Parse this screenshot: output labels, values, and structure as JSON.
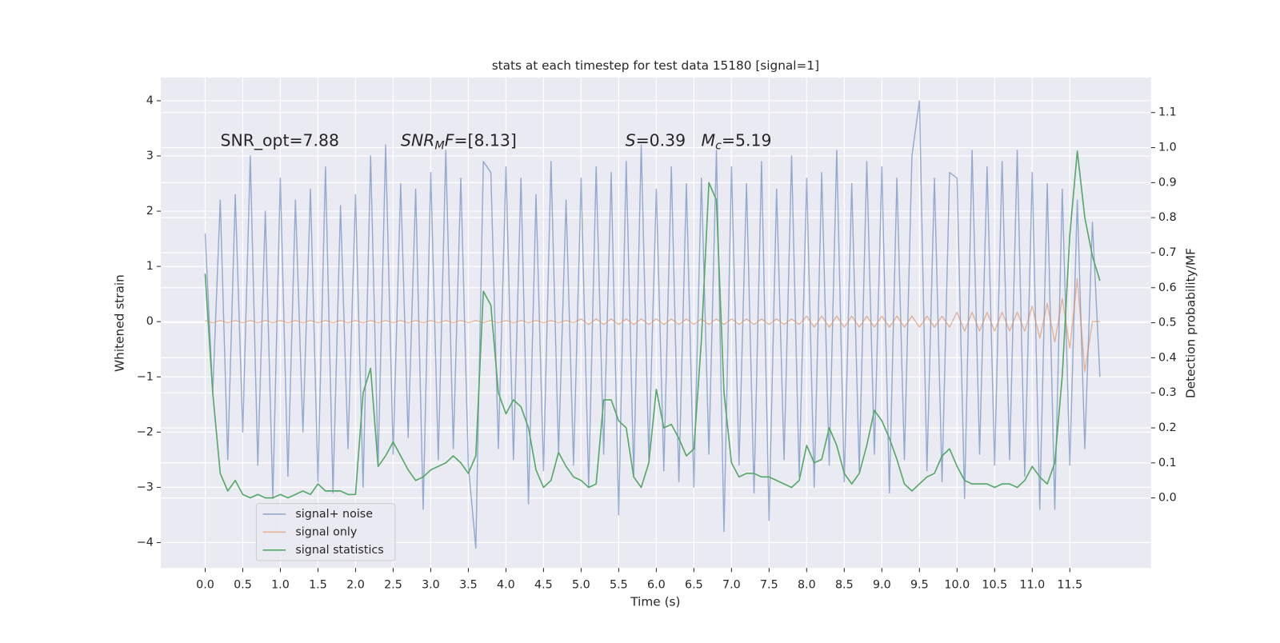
{
  "chart_data": {
    "type": "line",
    "title": "stats at each timestep for test data 15180 [signal=1]",
    "xlabel": "Time (s)",
    "ylabel": "Whitened strain",
    "y2label": "Detection probability/MF",
    "annotations": [
      {
        "parts": [
          "SNR_opt=7.88"
        ]
      },
      {
        "parts": [
          "SNR",
          "M",
          "F",
          "=[8.13]"
        ]
      },
      {
        "parts": [
          "S",
          "=0.39"
        ]
      },
      {
        "parts": [
          "M",
          "c",
          "=5.19"
        ]
      }
    ],
    "xlim": [
      -0.59,
      12.58
    ],
    "ylim": [
      -4.46,
      4.42
    ],
    "y2lim": [
      -0.2,
      1.2
    ],
    "xticks": [
      {
        "value": 0,
        "label": "0.0"
      },
      0.5,
      {
        "value": 1,
        "label": "1.0"
      },
      1.5,
      {
        "value": 2,
        "label": "2.0"
      },
      2.5,
      {
        "value": 3,
        "label": "3.0"
      },
      3.5,
      {
        "value": 4,
        "label": "4.0"
      },
      4.5,
      {
        "value": 5,
        "label": "5.0"
      },
      5.5,
      {
        "value": 6,
        "label": "6.0"
      },
      6.5,
      {
        "value": 7,
        "label": "7.0"
      },
      7.5,
      {
        "value": 8,
        "label": "8.0"
      },
      8.5,
      {
        "value": 9,
        "label": "9.0"
      },
      9.5,
      {
        "value": 10,
        "label": "10.0"
      },
      10.5,
      {
        "value": 11,
        "label": "11.0"
      },
      11.5
    ],
    "yticks": [
      {
        "value": -4,
        "label": "−4"
      },
      {
        "value": -3,
        "label": "−3"
      },
      {
        "value": -2,
        "label": "−2"
      },
      {
        "value": -1,
        "label": "−1"
      },
      0,
      1,
      2,
      3,
      4
    ],
    "y2ticks": [
      {
        "value": 0,
        "label": "0.0"
      },
      0.1,
      0.2,
      0.3,
      0.4,
      0.5,
      0.6,
      0.7,
      0.8,
      0.9,
      {
        "value": 1,
        "label": "1.0"
      },
      1.1
    ],
    "grid": true,
    "legend": "lower left",
    "x": [
      0.0,
      0.1,
      0.2,
      0.3,
      0.4,
      0.5,
      0.6,
      0.7,
      0.8,
      0.9,
      1.0,
      1.1,
      1.2,
      1.3,
      1.4,
      1.5,
      1.6,
      1.7,
      1.8,
      1.9,
      2.0,
      2.1,
      2.2,
      2.3,
      2.4,
      2.5,
      2.6,
      2.7,
      2.8,
      2.9,
      3.0,
      3.1,
      3.2,
      3.3,
      3.4,
      3.5,
      3.6,
      3.7,
      3.8,
      3.9,
      4.0,
      4.1,
      4.2,
      4.3,
      4.4,
      4.5,
      4.6,
      4.7,
      4.8,
      4.9,
      5.0,
      5.1,
      5.2,
      5.3,
      5.4,
      5.5,
      5.6,
      5.7,
      5.8,
      5.9,
      6.0,
      6.1,
      6.2,
      6.3,
      6.4,
      6.5,
      6.6,
      6.7,
      6.8,
      6.9,
      7.0,
      7.1,
      7.2,
      7.3,
      7.4,
      7.5,
      7.6,
      7.7,
      7.8,
      7.9,
      8.0,
      8.1,
      8.2,
      8.3,
      8.4,
      8.5,
      8.6,
      8.7,
      8.8,
      8.9,
      9.0,
      9.1,
      9.2,
      9.3,
      9.4,
      9.5,
      9.6,
      9.7,
      9.8,
      9.9,
      10.0,
      10.1,
      10.2,
      10.3,
      10.4,
      10.5,
      10.6,
      10.7,
      10.8,
      10.9,
      11.0,
      11.1,
      11.2,
      11.3,
      11.4,
      11.5,
      11.6,
      11.7,
      11.8,
      11.9
    ],
    "series": [
      {
        "name": "signal+ noise",
        "color": "#4c72b0",
        "axis": "y",
        "values": [
          1.6,
          -1.3,
          2.2,
          -2.5,
          2.3,
          -2.0,
          3.0,
          -2.6,
          2.0,
          -3.2,
          2.6,
          -2.8,
          2.2,
          -2.0,
          2.4,
          -2.9,
          2.8,
          -3.1,
          2.1,
          -2.3,
          2.3,
          -3.0,
          3.0,
          -2.6,
          3.2,
          -2.4,
          2.5,
          -2.1,
          2.4,
          -3.4,
          2.7,
          -2.5,
          3.1,
          -2.3,
          2.6,
          -2.6,
          -4.1,
          2.9,
          2.7,
          -2.3,
          2.8,
          -2.5,
          2.6,
          -3.3,
          2.3,
          -2.7,
          2.9,
          -2.4,
          2.2,
          -2.6,
          2.6,
          -3.0,
          2.8,
          -2.4,
          2.7,
          -3.5,
          2.9,
          -2.8,
          3.2,
          -2.5,
          2.4,
          -2.7,
          2.8,
          -2.9,
          2.5,
          -3.0,
          2.6,
          -2.4,
          3.1,
          -3.8,
          2.8,
          -2.6,
          2.5,
          -3.1,
          2.9,
          -3.6,
          2.4,
          -2.5,
          3.0,
          -2.8,
          2.6,
          -3.0,
          2.7,
          -2.6,
          3.1,
          -2.9,
          2.5,
          -2.7,
          2.9,
          -2.4,
          2.8,
          -3.1,
          2.6,
          -2.5,
          3.0,
          4.0,
          -2.7,
          2.6,
          -2.9,
          2.7,
          2.6,
          -3.2,
          3.1,
          -2.4,
          2.8,
          -2.6,
          2.9,
          -2.5,
          3.1,
          -2.8,
          2.7,
          -3.4,
          2.5,
          -3.4,
          2.4,
          -2.6,
          2.2,
          -2.3,
          1.8,
          -1.0
        ]
      },
      {
        "name": "signal only",
        "color": "#dd8452",
        "axis": "y",
        "values": [
          0.02,
          -0.02,
          0.02,
          -0.02,
          0.02,
          -0.02,
          0.02,
          -0.02,
          0.02,
          -0.02,
          0.02,
          -0.02,
          0.02,
          -0.02,
          0.02,
          -0.02,
          0.02,
          -0.02,
          0.02,
          -0.02,
          0.02,
          -0.02,
          0.02,
          -0.02,
          0.02,
          -0.02,
          0.02,
          -0.02,
          0.02,
          -0.02,
          0.02,
          -0.02,
          0.02,
          -0.02,
          0.02,
          -0.02,
          0.02,
          -0.02,
          0.02,
          -0.02,
          0.02,
          -0.02,
          0.02,
          -0.02,
          0.02,
          -0.02,
          0.02,
          -0.02,
          0.02,
          -0.02,
          0.05,
          -0.05,
          0.05,
          -0.05,
          0.05,
          -0.05,
          0.05,
          -0.05,
          0.05,
          -0.05,
          0.05,
          -0.05,
          0.05,
          -0.05,
          0.05,
          -0.05,
          0.05,
          -0.05,
          0.05,
          -0.05,
          0.05,
          -0.05,
          0.05,
          -0.05,
          0.05,
          -0.05,
          0.05,
          -0.05,
          0.05,
          -0.05,
          0.1,
          -0.1,
          0.1,
          -0.1,
          0.1,
          -0.1,
          0.1,
          -0.1,
          0.1,
          -0.1,
          0.1,
          -0.1,
          0.1,
          -0.1,
          0.1,
          -0.1,
          0.1,
          -0.1,
          0.1,
          -0.1,
          0.17,
          -0.17,
          0.17,
          -0.17,
          0.17,
          -0.17,
          0.17,
          -0.17,
          0.17,
          -0.17,
          0.28,
          -0.3,
          0.33,
          -0.37,
          0.42,
          -0.48,
          0.78,
          -0.9,
          0,
          0
        ]
      },
      {
        "name": "signal statistics",
        "color": "#55a868",
        "axis": "y2",
        "values": [
          0.64,
          0.3,
          0.07,
          0.02,
          0.05,
          0.01,
          0.0,
          0.01,
          0.0,
          0.0,
          0.01,
          0.0,
          0.01,
          0.02,
          0.01,
          0.04,
          0.02,
          0.02,
          0.02,
          0.01,
          0.01,
          0.3,
          0.37,
          0.09,
          0.12,
          0.16,
          0.12,
          0.08,
          0.05,
          0.06,
          0.08,
          0.09,
          0.1,
          0.12,
          0.1,
          0.07,
          0.12,
          0.59,
          0.55,
          0.3,
          0.24,
          0.28,
          0.26,
          0.2,
          0.08,
          0.03,
          0.05,
          0.13,
          0.09,
          0.06,
          0.05,
          0.03,
          0.04,
          0.28,
          0.28,
          0.22,
          0.2,
          0.06,
          0.03,
          0.1,
          0.31,
          0.2,
          0.21,
          0.17,
          0.12,
          0.14,
          0.45,
          0.9,
          0.85,
          0.3,
          0.1,
          0.06,
          0.07,
          0.07,
          0.06,
          0.06,
          0.05,
          0.04,
          0.03,
          0.05,
          0.15,
          0.1,
          0.11,
          0.2,
          0.15,
          0.07,
          0.04,
          0.07,
          0.15,
          0.25,
          0.22,
          0.17,
          0.11,
          0.04,
          0.02,
          0.04,
          0.06,
          0.07,
          0.12,
          0.14,
          0.09,
          0.05,
          0.04,
          0.04,
          0.04,
          0.03,
          0.04,
          0.04,
          0.03,
          0.05,
          0.09,
          0.06,
          0.04,
          0.1,
          0.35,
          0.75,
          0.99,
          0.8,
          0.69,
          0.62
        ]
      }
    ]
  }
}
